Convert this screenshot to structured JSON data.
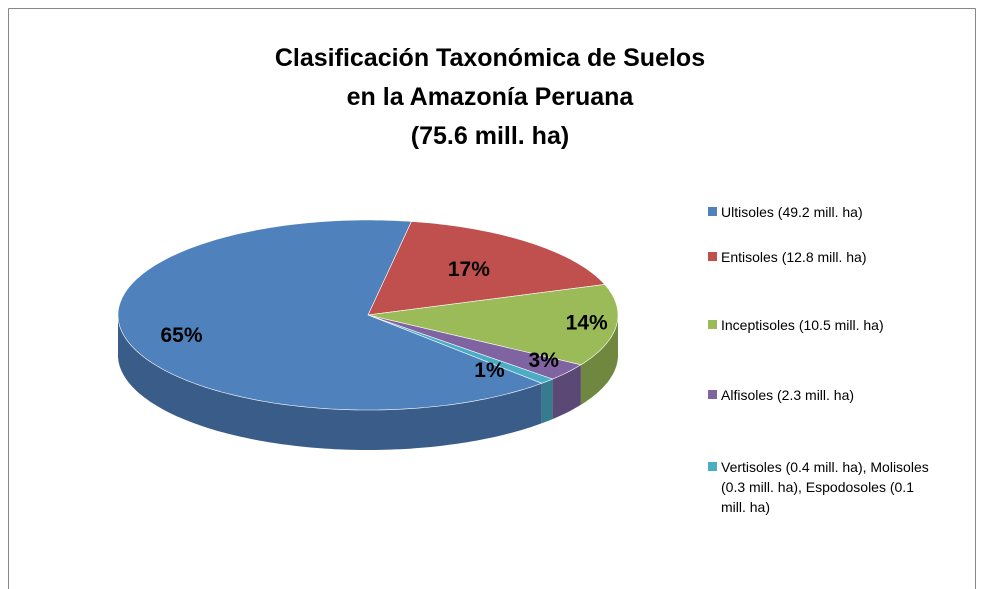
{
  "chart_data": {
    "type": "pie",
    "title": [
      "Clasificación Taxonómica de Suelos",
      "en la Amazonía Peruana",
      "(75.6 mill. ha)"
    ],
    "categories": [
      "Ultisoles (49.2 mill. ha)",
      "Entisoles (12.8 mill. ha)",
      "Inceptisoles (10.5 mill. ha)",
      "Alfisoles (2.3 mill. ha)",
      "Vertisoles (0.4 mill. ha), Molisoles (0.3 mill. ha), Espodosoles (0.1 mill. ha)"
    ],
    "values": [
      65,
      17,
      14,
      3,
      1
    ],
    "value_labels": [
      "65%",
      "17%",
      "14%",
      "3%",
      "1%"
    ],
    "colors": [
      "#4f81bd",
      "#c0504d",
      "#9bbb59",
      "#8064a2",
      "#4bacc6"
    ],
    "legend": "right"
  }
}
